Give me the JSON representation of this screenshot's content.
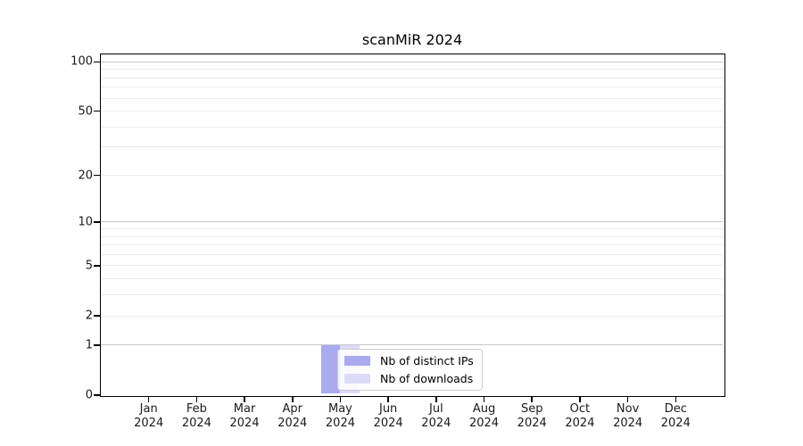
{
  "title": "scanMiR 2024",
  "chart_data": {
    "type": "bar",
    "title": "scanMiR 2024",
    "categories": [
      "Jan 2024",
      "Feb 2024",
      "Mar 2024",
      "Apr 2024",
      "May 2024",
      "Jun 2024",
      "Jul 2024",
      "Aug 2024",
      "Sep 2024",
      "Oct 2024",
      "Nov 2024",
      "Dec 2024"
    ],
    "x_tick_labels": [
      [
        "Jan",
        "2024"
      ],
      [
        "Feb",
        "2024"
      ],
      [
        "Mar",
        "2024"
      ],
      [
        "Apr",
        "2024"
      ],
      [
        "May",
        "2024"
      ],
      [
        "Jun",
        "2024"
      ],
      [
        "Jul",
        "2024"
      ],
      [
        "Aug",
        "2024"
      ],
      [
        "Sep",
        "2024"
      ],
      [
        "Oct",
        "2024"
      ],
      [
        "Nov",
        "2024"
      ],
      [
        "Dec",
        "2024"
      ]
    ],
    "series": [
      {
        "name": "Nb of distinct IPs",
        "color": "#aaaaf0",
        "values": [
          0,
          0,
          0,
          0,
          1,
          0,
          0,
          0,
          0,
          0,
          0,
          0
        ]
      },
      {
        "name": "Nb of downloads",
        "color": "#dcdcf8",
        "values": [
          0,
          0,
          0,
          0,
          1,
          0,
          0,
          0,
          0,
          0,
          0,
          0
        ]
      }
    ],
    "yscale": "log1p",
    "ylim": [
      0,
      111
    ],
    "y_tick_values": [
      100,
      50,
      20,
      10,
      5,
      2,
      1,
      0
    ],
    "y_gridlines": {
      "major": [
        1,
        10,
        100
      ],
      "minor": [
        2,
        3,
        4,
        5,
        6,
        7,
        8,
        9,
        20,
        30,
        40,
        50,
        60,
        70,
        80,
        90
      ]
    },
    "grid": "horizontal",
    "legend_position": "lower center",
    "colors": {
      "grid_major": "#c6c6c6",
      "grid_minor": "#ebebeb",
      "spine": "#000000",
      "text": "#1a1a1a"
    }
  }
}
